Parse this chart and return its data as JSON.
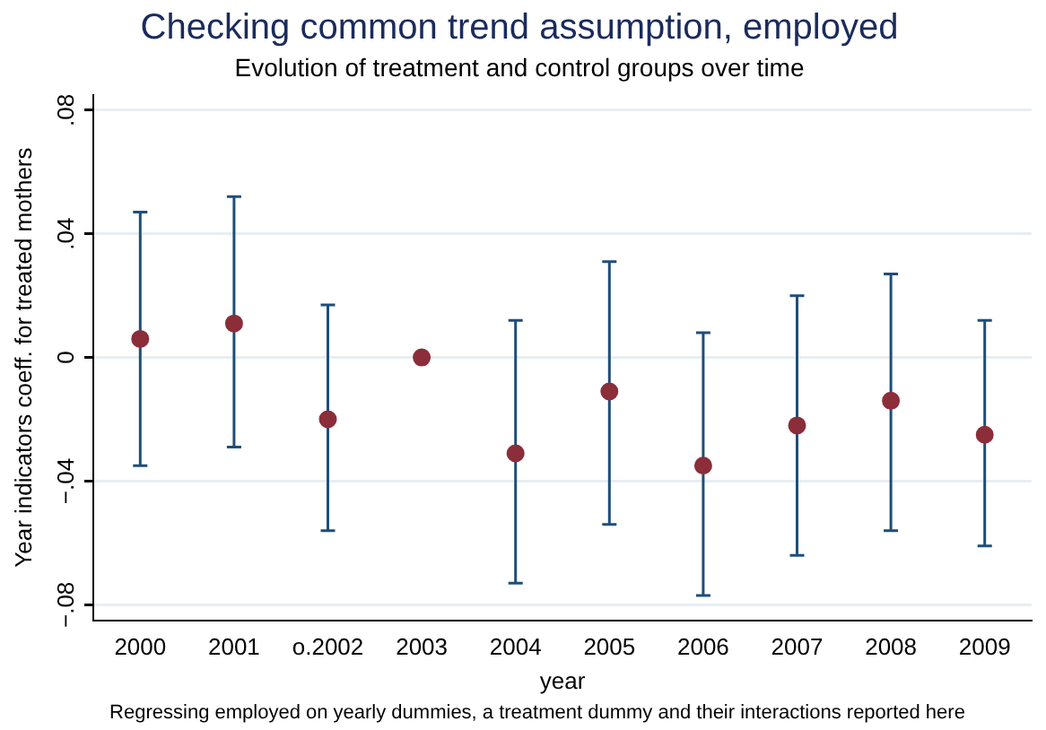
{
  "chart_data": {
    "type": "scatter",
    "title": "Checking common trend assumption, employed",
    "subtitle": "Evolution of treatment and control groups over time",
    "xlabel": "year",
    "ylabel": "Year indicators coeff. for treated mothers",
    "categories": [
      "2000",
      "2001",
      "o.2002",
      "2003",
      "2004",
      "2005",
      "2006",
      "2007",
      "2008",
      "2009"
    ],
    "series": [
      {
        "color": "#8b2e3a",
        "values": [
          0.006,
          0.011,
          -0.02,
          0,
          -0.031,
          -0.011,
          -0.035,
          -0.022,
          -0.014,
          -0.025
        ],
        "errors": [
          [
            -0.035,
            0.047
          ],
          [
            -0.029,
            0.052
          ],
          [
            -0.056,
            0.017
          ],
          null,
          [
            -0.073,
            0.012
          ],
          [
            -0.054,
            0.031
          ],
          [
            -0.077,
            0.008
          ],
          [
            -0.064,
            0.02
          ],
          [
            -0.056,
            0.027
          ],
          [
            -0.061,
            0.012
          ]
        ]
      }
    ],
    "ylim": [
      -0.085,
      0.085
    ],
    "yticks": [
      {
        "value": -0.08,
        "label": "−.08"
      },
      {
        "value": -0.04,
        "label": "−.04"
      },
      {
        "value": 0,
        "label": "0"
      },
      {
        "value": 0.04,
        "label": ".04"
      },
      {
        "value": 0.08,
        "label": ".08"
      }
    ],
    "grid": "y",
    "legend": false,
    "marker": "circle",
    "annotations": [
      "Regressing employed on yearly dummies, a treatment dummy and their interactions reported here"
    ]
  }
}
